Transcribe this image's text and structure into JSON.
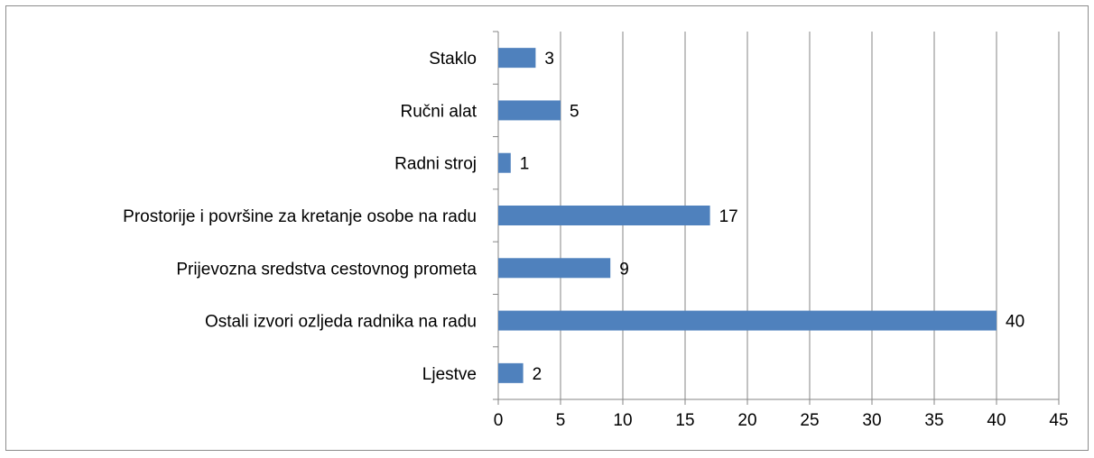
{
  "chart_data": {
    "type": "hbar",
    "categories": [
      "Staklo",
      "Ručni alat",
      "Radni stroj",
      "Prostorije i površine za kretanje osobe na radu",
      "Prijevozna sredstva cestovnog prometa",
      "Ostali izvori ozljeda radnika na radu",
      "Ljestve"
    ],
    "values": [
      3,
      5,
      1,
      17,
      9,
      40,
      2
    ],
    "color": "#4f81bd",
    "xlim": [
      0,
      45
    ],
    "xticks": [
      0,
      5,
      10,
      15,
      20,
      25,
      30,
      35,
      40,
      45
    ],
    "grid": true
  }
}
